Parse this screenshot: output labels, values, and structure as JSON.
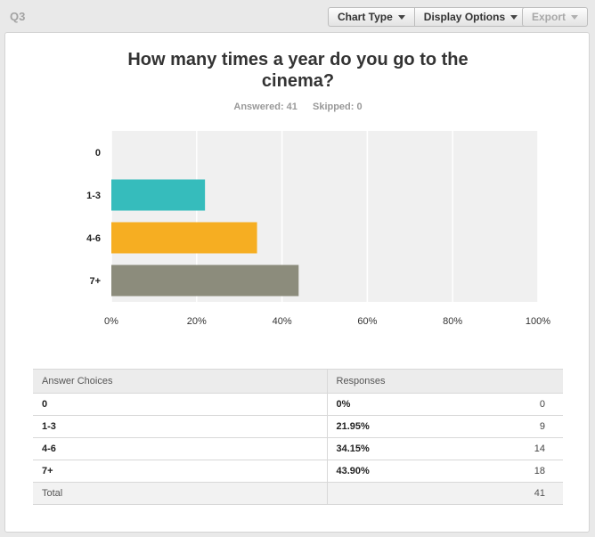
{
  "header": {
    "question_label": "Q3",
    "chart_type_label": "Chart Type",
    "display_options_label": "Display Options",
    "export_label": "Export"
  },
  "summary": {
    "answered": "Answered: 41",
    "skipped": "Skipped: 0"
  },
  "colors": {
    "bar_1_3": "#36bcbc",
    "bar_4_6": "#f6ae22",
    "bar_7_plus": "#8c8c7c"
  },
  "chart_data": {
    "type": "bar",
    "orientation": "horizontal",
    "title": "How many times a year do you go to the cinema?",
    "categories": [
      "0",
      "1-3",
      "4-6",
      "7+"
    ],
    "values": [
      0,
      21.95,
      34.15,
      43.9
    ],
    "colors": [
      "#36bcbc",
      "#36bcbc",
      "#f6ae22",
      "#8c8c7c"
    ],
    "xlim": [
      0,
      100
    ],
    "x_ticks": [
      "0%",
      "20%",
      "40%",
      "60%",
      "80%",
      "100%"
    ],
    "grid": true,
    "legend": "none"
  },
  "table": {
    "headers": [
      "Answer Choices",
      "Responses"
    ],
    "rows": [
      {
        "choice": "0",
        "percent": "0%",
        "count": "0"
      },
      {
        "choice": "1-3",
        "percent": "21.95%",
        "count": "9"
      },
      {
        "choice": "4-6",
        "percent": "34.15%",
        "count": "14"
      },
      {
        "choice": "7+",
        "percent": "43.90%",
        "count": "18"
      }
    ],
    "total_label": "Total",
    "total_count": "41"
  }
}
